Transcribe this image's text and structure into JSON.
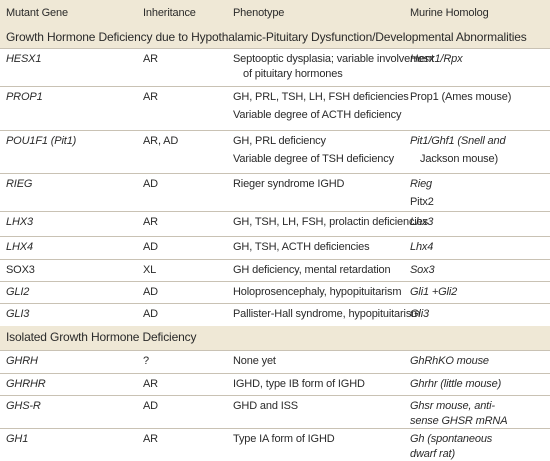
{
  "header": {
    "columns": [
      "Mutant Gene",
      "Inheritance",
      "Phenotype",
      "Murine Homolog"
    ]
  },
  "sections": [
    {
      "title": "Growth Hormone Deficiency due to Hypothalamic-Pituitary Dysfunction/Developmental Abnormalities",
      "rows": [
        {
          "gene": "HESX1",
          "inheritance": "AR",
          "phenotype": [
            "Septooptic dysplasia; variable involvement",
            "of pituitary hormones"
          ],
          "homolog": [
            "Hesx1/Rpx"
          ]
        },
        {
          "gene": "PROP1",
          "inheritance": "AR",
          "phenotype": [
            "GH, PRL, TSH, LH, FSH deficiencies",
            "Variable degree of ACTH deficiency"
          ],
          "homolog": [
            "Prop1 (Ames mouse)"
          ]
        },
        {
          "gene": "POU1F1 (Pit1)",
          "inheritance": "AR, AD",
          "phenotype": [
            "GH, PRL deficiency",
            "Variable degree of TSH deficiency"
          ],
          "homolog": [
            "Pit1/Ghf1 (Snell and",
            "Jackson mouse)"
          ]
        },
        {
          "gene": "RIEG",
          "inheritance": "AD",
          "phenotype": [
            "Rieger syndrome IGHD"
          ],
          "homolog": [
            "Rieg",
            "Pitx2"
          ]
        },
        {
          "gene": "LHX3",
          "inheritance": "AR",
          "phenotype": [
            "GH, TSH, LH, FSH, prolactin deficiencies"
          ],
          "homolog": [
            "Lhx3"
          ]
        },
        {
          "gene": "LHX4",
          "inheritance": "AD",
          "phenotype": [
            "GH, TSH, ACTH deficiencies"
          ],
          "homolog": [
            "Lhx4"
          ]
        },
        {
          "gene": "SOX3",
          "inheritance": "XL",
          "phenotype": [
            "GH deficiency, mental retardation"
          ],
          "homolog": [
            "Sox3"
          ]
        },
        {
          "gene": "GLI2",
          "inheritance": "AD",
          "phenotype": [
            "Holoprosencephaly, hypopituitarism"
          ],
          "homolog": [
            "Gli1 +Gli2"
          ]
        },
        {
          "gene": "GLI3",
          "inheritance": "AD",
          "phenotype": [
            "Pallister-Hall syndrome, hypopituitarism"
          ],
          "homolog": [
            "Gli3"
          ]
        }
      ]
    },
    {
      "title": "Isolated Growth Hormone Deficiency",
      "rows": [
        {
          "gene": "GHRH",
          "inheritance": "?",
          "phenotype": [
            "None yet"
          ],
          "homolog": [
            "GhRhKO mouse"
          ]
        },
        {
          "gene": "GHRHR",
          "inheritance": "AR",
          "phenotype": [
            "IGHD, type IB form of IGHD"
          ],
          "homolog": [
            "Ghrhr (little mouse)"
          ]
        },
        {
          "gene": "GHS-R",
          "inheritance": "AD",
          "phenotype": [
            "GHD and ISS"
          ],
          "homolog": [
            "Ghsr mouse, anti-",
            "sense GHSR mRNA"
          ]
        },
        {
          "gene": "GH1",
          "inheritance": "AR",
          "phenotype": [
            "Type IA form of IGHD"
          ],
          "homolog": [
            "Gh (spontaneous",
            "dwarf rat)"
          ]
        }
      ]
    }
  ]
}
